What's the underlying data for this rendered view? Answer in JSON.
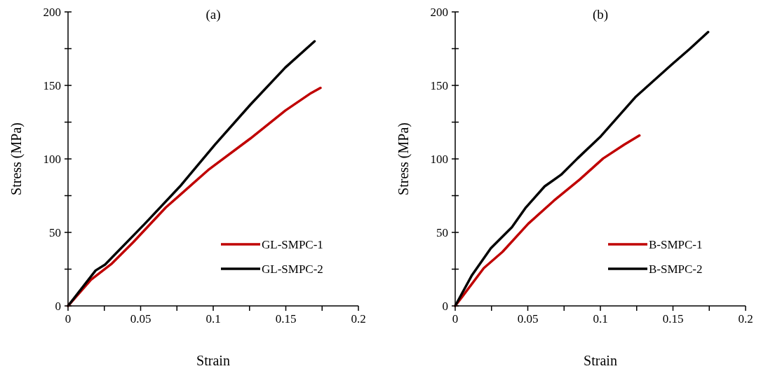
{
  "chart_data": [
    {
      "type": "line",
      "title": "(a)",
      "xlabel": "Strain",
      "ylabel": "Stress (MPa)",
      "xlim": [
        0,
        0.2
      ],
      "ylim": [
        0,
        200
      ],
      "xticks": [
        0,
        {
          "value": 0.025,
          "label": null
        },
        0.05,
        {
          "value": 0.075,
          "label": null
        },
        0.1,
        {
          "value": 0.125,
          "label": null
        },
        0.15,
        {
          "value": 0.175,
          "label": null
        },
        0.2
      ],
      "yticks": [
        0,
        {
          "value": 25,
          "label": null
        },
        50,
        {
          "value": 75,
          "label": null
        },
        100,
        {
          "value": 125,
          "label": null
        },
        150,
        {
          "value": 175,
          "label": null
        },
        200
      ],
      "grid": false,
      "legend": "bottom right",
      "marker": "none",
      "line_style": "solid",
      "series": [
        {
          "name": "GL-SMPC-1",
          "color": "#c00000",
          "x": [
            0,
            0.0158,
            0.0303,
            0.0448,
            0.0674,
            0.0965,
            0.1255,
            0.1497,
            0.1674,
            0.1739
          ],
          "values": [
            0,
            17.8,
            28.9,
            43.2,
            67,
            92.4,
            113.8,
            132.9,
            144.8,
            148.3
          ]
        },
        {
          "name": "GL-SMPC-2",
          "color": "#000000",
          "x": [
            0,
            0.019,
            0.0255,
            0.0529,
            0.0771,
            0.1013,
            0.1255,
            0.1497,
            0.1698
          ],
          "values": [
            0,
            24.1,
            28.1,
            55.9,
            81.3,
            109.8,
            136.8,
            162.2,
            180
          ]
        }
      ]
    },
    {
      "type": "line",
      "title": "(b)",
      "xlabel": "Strain",
      "ylabel": "Stress (MPa)",
      "xlim": [
        0,
        0.2
      ],
      "ylim": [
        0,
        200
      ],
      "xticks": [
        0,
        {
          "value": 0.025,
          "label": null
        },
        0.05,
        {
          "value": 0.075,
          "label": null
        },
        0.1,
        {
          "value": 0.125,
          "label": null
        },
        0.15,
        {
          "value": 0.175,
          "label": null
        },
        0.2
      ],
      "yticks": [
        0,
        {
          "value": 25,
          "label": null
        },
        50,
        {
          "value": 75,
          "label": null
        },
        100,
        {
          "value": 125,
          "label": null
        },
        150,
        {
          "value": 175,
          "label": null
        },
        200
      ],
      "grid": false,
      "legend": "bottom right",
      "marker": "none",
      "line_style": "solid",
      "series": [
        {
          "name": "B-SMPC-1",
          "color": "#c00000",
          "x": [
            0,
            0.0052,
            0.0197,
            0.0326,
            0.0503,
            0.0681,
            0.0858,
            0.1019,
            0.1165,
            0.1269
          ],
          "values": [
            0,
            6.7,
            25.7,
            36.8,
            55.9,
            71.7,
            86,
            100.3,
            109.8,
            115.9
          ]
        },
        {
          "name": "B-SMPC-2",
          "color": "#000000",
          "x": [
            0,
            0.0116,
            0.0245,
            0.039,
            0.0487,
            0.0616,
            0.0729,
            0.0842,
            0.1003,
            0.1245,
            0.1487,
            0.1616,
            0.1742
          ],
          "values": [
            0,
            21,
            39.2,
            53.5,
            67,
            81.3,
            89.2,
            100.3,
            115.4,
            142.4,
            163.8,
            174.9,
            186.3
          ]
        }
      ]
    }
  ]
}
